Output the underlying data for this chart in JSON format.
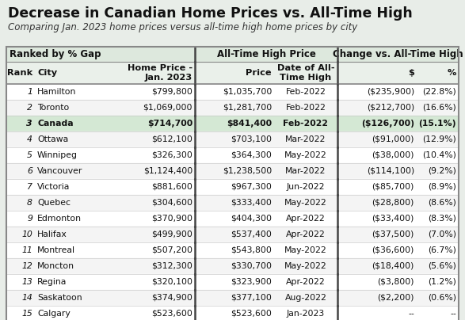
{
  "title": "Decrease in Canadian Home Prices vs. All-Time High",
  "subtitle": "Comparing Jan. 2023 home prices versus all-time high home prices by city",
  "bg_color": "#e8ede8",
  "header_group1": "Ranked by % Gap",
  "header_group2": "All-Time High Price",
  "header_group3": "Change vs. All-Time High",
  "rows": [
    {
      "rank": "1",
      "city": "Hamilton",
      "bold": false,
      "home_price": "$799,800",
      "ath_price": "$1,035,700",
      "ath_date": "Feb-2022",
      "chg_dollar": "($235,900)",
      "chg_pct": "(22.8%)"
    },
    {
      "rank": "2",
      "city": "Toronto",
      "bold": false,
      "home_price": "$1,069,000",
      "ath_price": "$1,281,700",
      "ath_date": "Feb-2022",
      "chg_dollar": "($212,700)",
      "chg_pct": "(16.6%)"
    },
    {
      "rank": "3",
      "city": "Canada",
      "bold": true,
      "home_price": "$714,700",
      "ath_price": "$841,400",
      "ath_date": "Feb-2022",
      "chg_dollar": "($126,700)",
      "chg_pct": "(15.1%)"
    },
    {
      "rank": "4",
      "city": "Ottawa",
      "bold": false,
      "home_price": "$612,100",
      "ath_price": "$703,100",
      "ath_date": "Mar-2022",
      "chg_dollar": "($91,000)",
      "chg_pct": "(12.9%)"
    },
    {
      "rank": "5",
      "city": "Winnipeg",
      "bold": false,
      "home_price": "$326,300",
      "ath_price": "$364,300",
      "ath_date": "May-2022",
      "chg_dollar": "($38,000)",
      "chg_pct": "(10.4%)"
    },
    {
      "rank": "6",
      "city": "Vancouver",
      "bold": false,
      "home_price": "$1,124,400",
      "ath_price": "$1,238,500",
      "ath_date": "Mar-2022",
      "chg_dollar": "($114,100)",
      "chg_pct": "(9.2%)"
    },
    {
      "rank": "7",
      "city": "Victoria",
      "bold": false,
      "home_price": "$881,600",
      "ath_price": "$967,300",
      "ath_date": "Jun-2022",
      "chg_dollar": "($85,700)",
      "chg_pct": "(8.9%)"
    },
    {
      "rank": "8",
      "city": "Quebec",
      "bold": false,
      "home_price": "$304,600",
      "ath_price": "$333,400",
      "ath_date": "May-2022",
      "chg_dollar": "($28,800)",
      "chg_pct": "(8.6%)"
    },
    {
      "rank": "9",
      "city": "Edmonton",
      "bold": false,
      "home_price": "$370,900",
      "ath_price": "$404,300",
      "ath_date": "Apr-2022",
      "chg_dollar": "($33,400)",
      "chg_pct": "(8.3%)"
    },
    {
      "rank": "10",
      "city": "Halifax",
      "bold": false,
      "home_price": "$499,900",
      "ath_price": "$537,400",
      "ath_date": "Apr-2022",
      "chg_dollar": "($37,500)",
      "chg_pct": "(7.0%)"
    },
    {
      "rank": "11",
      "city": "Montreal",
      "bold": false,
      "home_price": "$507,200",
      "ath_price": "$543,800",
      "ath_date": "May-2022",
      "chg_dollar": "($36,600)",
      "chg_pct": "(6.7%)"
    },
    {
      "rank": "12",
      "city": "Moncton",
      "bold": false,
      "home_price": "$312,300",
      "ath_price": "$330,700",
      "ath_date": "May-2022",
      "chg_dollar": "($18,400)",
      "chg_pct": "(5.6%)"
    },
    {
      "rank": "13",
      "city": "Regina",
      "bold": false,
      "home_price": "$320,100",
      "ath_price": "$323,900",
      "ath_date": "Apr-2022",
      "chg_dollar": "($3,800)",
      "chg_pct": "(1.2%)"
    },
    {
      "rank": "14",
      "city": "Saskatoon",
      "bold": false,
      "home_price": "$374,900",
      "ath_price": "$377,100",
      "ath_date": "Aug-2022",
      "chg_dollar": "($2,200)",
      "chg_pct": "(0.6%)"
    },
    {
      "rank": "15",
      "city": "Calgary",
      "bold": false,
      "home_price": "$523,600",
      "ath_price": "$523,600",
      "ath_date": "Jan-2023",
      "chg_dollar": "--",
      "chg_pct": "--"
    }
  ],
  "title_fontsize": 12.5,
  "subtitle_fontsize": 8.5,
  "cell_fontsize": 7.8,
  "header_fontsize": 8.2,
  "group_fontsize": 8.5,
  "title_bg": "#e8ede8",
  "header_bg": "#dde8dd",
  "subheader_bg": "#eaf0ea",
  "canada_row_bg": "#d4e8d4",
  "row_colors": [
    "#ffffff",
    "#f4f4f4"
  ],
  "border_color": "#888888",
  "divider_color": "#444444",
  "gridline_color": "#cccccc"
}
